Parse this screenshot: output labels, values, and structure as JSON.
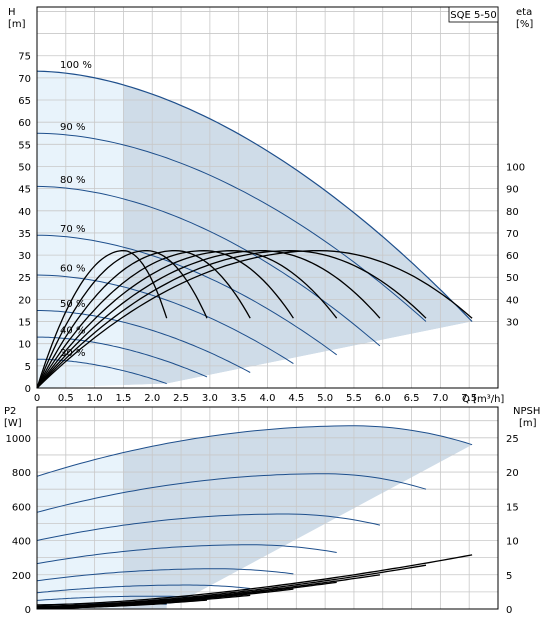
{
  "chart_data": [
    {
      "type": "line",
      "title": "SQE 5-50",
      "ylabel": "H",
      "ylabel_unit": "[m]",
      "y2label": "eta",
      "y2label_unit": "[%]",
      "xlabel": "Q [m³/h]",
      "x_ticks": [
        "0",
        "0.5",
        "1.0",
        "1.5",
        "2.0",
        "2.5",
        "3.0",
        "3.5",
        "4.0",
        "4.5",
        "5.0",
        "5.5",
        "6.0",
        "6.5",
        "7.0",
        "7.5"
      ],
      "y_ticks": [
        "0",
        "5",
        "10",
        "15",
        "20",
        "25",
        "30",
        "35",
        "40",
        "45",
        "50",
        "55",
        "60",
        "65",
        "70",
        "75"
      ],
      "y2_ticks": [
        "30",
        "40",
        "50",
        "60",
        "70",
        "80",
        "90",
        "100"
      ],
      "xlim": [
        0,
        8
      ],
      "ylim": [
        0,
        86
      ],
      "y2_mapping": "eta 30 % at H 15, eta 100 % at H 50",
      "grid": true,
      "head_curves": [
        {
          "name": "100 %",
          "q_max": 7.55,
          "h0": 71.5,
          "h_end": 15.0,
          "curvature": 1.8
        },
        {
          "name": "90 %",
          "q_max": 6.75,
          "h0": 57.5,
          "h_end": 15.0,
          "curvature": 1.85
        },
        {
          "name": "80 %",
          "q_max": 5.95,
          "h0": 45.5,
          "h_end": 9.5,
          "curvature": 1.85
        },
        {
          "name": "70 %",
          "q_max": 5.2,
          "h0": 34.5,
          "h_end": 7.5,
          "curvature": 1.85
        },
        {
          "name": "60 %",
          "q_max": 4.45,
          "h0": 25.5,
          "h_end": 5.5,
          "curvature": 1.85
        },
        {
          "name": "50 %",
          "q_max": 3.7,
          "h0": 17.5,
          "h_end": 3.5,
          "curvature": 1.85
        },
        {
          "name": "40 %",
          "q_max": 2.95,
          "h0": 11.5,
          "h_end": 2.5,
          "curvature": 1.85
        },
        {
          "name": "30 %",
          "q_max": 2.25,
          "h0": 6.5,
          "h_end": 1.0,
          "curvature": 1.85
        }
      ],
      "efficiency_curves": [
        {
          "q_max": 2.25,
          "eta_peak": 62,
          "q_peak": 1.5
        },
        {
          "q_max": 2.95,
          "eta_peak": 62,
          "q_peak": 1.9
        },
        {
          "q_max": 3.7,
          "eta_peak": 62,
          "q_peak": 2.4
        },
        {
          "q_max": 4.45,
          "eta_peak": 62,
          "q_peak": 2.9
        },
        {
          "q_max": 5.2,
          "eta_peak": 62,
          "q_peak": 3.4
        },
        {
          "q_max": 5.95,
          "eta_peak": 62,
          "q_peak": 3.9
        },
        {
          "q_max": 6.75,
          "eta_peak": 62,
          "q_peak": 4.4
        },
        {
          "q_max": 7.55,
          "eta_peak": 62,
          "q_peak": 4.9
        }
      ],
      "eta_end": 31.5,
      "shaded_boundary_line": [
        [
          2.25,
          1.0
        ],
        [
          7.55,
          15.0
        ]
      ],
      "light_shade_until_q": 1.5
    },
    {
      "type": "line",
      "ylabel": "P2",
      "ylabel_unit": "[W]",
      "y2label": "NPSH",
      "y2label_unit": "[m]",
      "x_ticks": [
        "0",
        "0.5",
        "1.0",
        "1.5",
        "2.0",
        "2.5",
        "3.0",
        "3.5",
        "4.0",
        "4.5",
        "5.0",
        "5.5",
        "6.0",
        "6.5",
        "7.0",
        "7.5"
      ],
      "y_ticks": [
        "0",
        "200",
        "400",
        "600",
        "800",
        "1000"
      ],
      "y2_ticks": [
        "0",
        "5",
        "10",
        "15",
        "20",
        "25"
      ],
      "xlim": [
        0,
        8
      ],
      "ylim": [
        0,
        1180
      ],
      "y2lim": [
        0,
        29.5
      ],
      "grid": true,
      "power_curves": [
        {
          "q_max": 7.55,
          "p0": 775,
          "p_peak": 1070,
          "q_peak": 5.5,
          "p_end": 960
        },
        {
          "q_max": 6.75,
          "p0": 565,
          "p_peak": 790,
          "q_peak": 5.0,
          "p_end": 700
        },
        {
          "q_max": 5.95,
          "p0": 400,
          "p_peak": 555,
          "q_peak": 4.3,
          "p_end": 490
        },
        {
          "q_max": 5.2,
          "p0": 265,
          "p_peak": 375,
          "q_peak": 3.7,
          "p_end": 330
        },
        {
          "q_max": 4.45,
          "p0": 165,
          "p_peak": 235,
          "q_peak": 3.1,
          "p_end": 205
        },
        {
          "q_max": 3.7,
          "p0": 95,
          "p_peak": 140,
          "q_peak": 2.6,
          "p_end": 120
        },
        {
          "q_max": 2.95,
          "p0": 50,
          "p_peak": 75,
          "q_peak": 2.0,
          "p_end": 65
        },
        {
          "q_max": 2.25,
          "p0": 22,
          "p_peak": 34,
          "q_peak": 1.5,
          "p_end": 28
        }
      ],
      "npsh_curves": [
        {
          "q0": 0.0,
          "n0": 0.6,
          "q_max": 7.55,
          "n_end": 7.9
        },
        {
          "q0": 0.0,
          "n0": 0.4,
          "q_max": 6.75,
          "n_end": 6.4
        },
        {
          "q0": 0.0,
          "n0": 0.3,
          "q_max": 5.95,
          "n_end": 5.0
        },
        {
          "q0": 0.0,
          "n0": 0.2,
          "q_max": 5.2,
          "n_end": 3.9
        },
        {
          "q0": 0.0,
          "n0": 0.15,
          "q_max": 4.45,
          "n_end": 2.9
        },
        {
          "q0": 0.0,
          "n0": 0.1,
          "q_max": 3.7,
          "n_end": 2.0
        },
        {
          "q0": 0.0,
          "n0": 0.1,
          "q_max": 2.95,
          "n_end": 1.3
        },
        {
          "q0": 0.0,
          "n0": 0.1,
          "q_max": 2.25,
          "n_end": 0.8
        }
      ],
      "light_shade_until_q": 1.5
    }
  ],
  "colors": {
    "curve_blue": "#1e4f8c",
    "efficiency_black": "#000000",
    "shade_light": "#e8f3fb",
    "shade_dark": "#cfdce8",
    "grid": "#c8c8c8"
  }
}
